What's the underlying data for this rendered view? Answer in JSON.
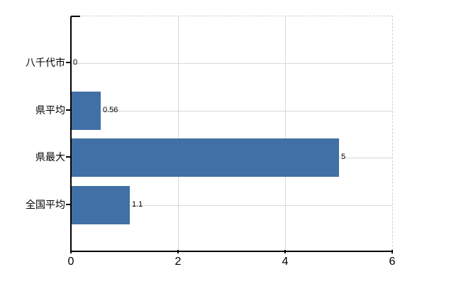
{
  "chart": {
    "background_color": "#ffffff",
    "bar_color": "#4070a5",
    "grid_color": "#d7dad4",
    "frame_dash_color": "#d4ccd2",
    "axis_color": "#000000",
    "text_color": "#000000"
  },
  "chart_data": {
    "type": "bar",
    "orientation": "horizontal",
    "title": "",
    "xlabel": "",
    "ylabel": "",
    "categories": [
      "八千代市",
      "県平均",
      "県最大",
      "全国平均"
    ],
    "values": [
      0,
      0.56,
      5,
      1.1
    ],
    "value_labels": [
      "0",
      "0.56",
      "5",
      "1.1"
    ],
    "xlim": [
      0,
      6
    ],
    "x_ticks": [
      0,
      2,
      4,
      6
    ],
    "x_tick_labels": [
      "0",
      "2",
      "4",
      "6"
    ],
    "grid": true,
    "legend": false
  }
}
